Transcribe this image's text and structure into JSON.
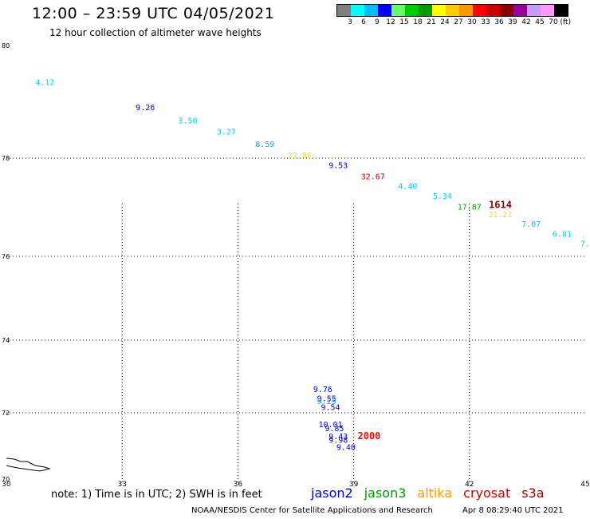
{
  "header": {
    "title": "12:00 – 23:59 UTC 04/05/2021",
    "subtitle": "12 hour collection of altimeter wave heights"
  },
  "color_scale": {
    "unit": "(ft)",
    "labels": [
      "3",
      "6",
      "9",
      "12",
      "15",
      "18",
      "21",
      "24",
      "27",
      "30",
      "33",
      "36",
      "39",
      "42",
      "45",
      "70"
    ],
    "colors": [
      "#808080",
      "#00ffff",
      "#00bfff",
      "#0000ff",
      "#66ff66",
      "#00cc00",
      "#009900",
      "#ffff00",
      "#ffcc00",
      "#ff9900",
      "#ff0000",
      "#cc0000",
      "#8b0000",
      "#990099",
      "#cc99ff",
      "#ff99ff",
      "#000000"
    ]
  },
  "chart_data": {
    "type": "scatter",
    "title": "12:00 – 23:59 UTC 04/05/2021",
    "subtitle": "12 hour collection of altimeter wave heights",
    "xlim": [
      30,
      45
    ],
    "ylim": [
      70,
      80
    ],
    "x_ticks": [
      "30",
      "33",
      "36",
      "39",
      "42",
      "45"
    ],
    "y_ticks": [
      "70",
      "72",
      "74",
      "76",
      "78",
      "80"
    ],
    "grid": true,
    "points": [
      {
        "lon": 31.0,
        "lat": 79.3,
        "label": "4.12",
        "color": "#00ccee"
      },
      {
        "lon": 33.6,
        "lat": 78.85,
        "label": "9.26",
        "color": "#0000cc"
      },
      {
        "lon": 34.7,
        "lat": 78.62,
        "label": "3.50",
        "color": "#00ccee"
      },
      {
        "lon": 35.7,
        "lat": 78.42,
        "label": "3.27",
        "color": "#00ccee"
      },
      {
        "lon": 36.7,
        "lat": 78.2,
        "label": "8.59",
        "color": "#00aaff"
      },
      {
        "lon": 37.6,
        "lat": 78.0,
        "label": "22.86",
        "color": "#f0e000"
      },
      {
        "lon": 38.6,
        "lat": 77.8,
        "label": "9.53",
        "color": "#0000cc"
      },
      {
        "lon": 39.5,
        "lat": 77.57,
        "label": "32.67",
        "color": "#cc0000"
      },
      {
        "lon": 40.4,
        "lat": 77.37,
        "label": "4.40",
        "color": "#00ccee"
      },
      {
        "lon": 41.3,
        "lat": 77.17,
        "label": "5.34",
        "color": "#00ccee"
      },
      {
        "lon": 42.0,
        "lat": 76.95,
        "label": "17.87",
        "color": "#00aa00"
      },
      {
        "lon": 42.8,
        "lat": 76.98,
        "label": "1614",
        "color": "#8b0000"
      },
      {
        "lon": 42.8,
        "lat": 76.8,
        "label": "21.21",
        "color": "#f0e000"
      },
      {
        "lon": 43.6,
        "lat": 76.6,
        "label": "7.07",
        "color": "#00ccee"
      },
      {
        "lon": 44.4,
        "lat": 76.4,
        "label": "6.81",
        "color": "#00ccee"
      },
      {
        "lon": 45.0,
        "lat": 76.2,
        "label": "7.",
        "color": "#00ccee"
      },
      {
        "lon": 38.2,
        "lat": 72.57,
        "label": "9.76",
        "color": "#0000cc"
      },
      {
        "lon": 38.3,
        "lat": 72.32,
        "label": "9.55",
        "color": "#0000cc"
      },
      {
        "lon": 38.3,
        "lat": 72.24,
        "label": "9.29",
        "color": "#00aaff"
      },
      {
        "lon": 38.4,
        "lat": 72.08,
        "label": "9.54",
        "color": "#0000cc"
      },
      {
        "lon": 38.4,
        "lat": 71.57,
        "label": "10.01",
        "color": "#0000cc"
      },
      {
        "lon": 38.5,
        "lat": 71.45,
        "label": "9.85",
        "color": "#0000cc"
      },
      {
        "lon": 38.6,
        "lat": 71.2,
        "label": "9.43",
        "color": "#0000cc"
      },
      {
        "lon": 38.6,
        "lat": 71.1,
        "label": "9.98",
        "color": "#0000cc"
      },
      {
        "lon": 38.8,
        "lat": 70.88,
        "label": "9.40",
        "color": "#0000cc"
      },
      {
        "lon": 39.4,
        "lat": 71.2,
        "label": "2000",
        "color": "#ff0000"
      }
    ]
  },
  "note": "note: 1) Time is in UTC; 2) SWH is in feet",
  "missions": [
    {
      "name": "jason2",
      "color": "#0000cc"
    },
    {
      "name": "jason3",
      "color": "#009900"
    },
    {
      "name": "altika",
      "color": "#ff9900"
    },
    {
      "name": "cryosat",
      "color": "#cc0000"
    },
    {
      "name": "s3a",
      "color": "#8b0000"
    }
  ],
  "footer": {
    "credit": "NOAA/NESDIS Center for Satellite Applications and Research",
    "timestamp": "Apr  8 08:29:40 UTC 2021"
  }
}
